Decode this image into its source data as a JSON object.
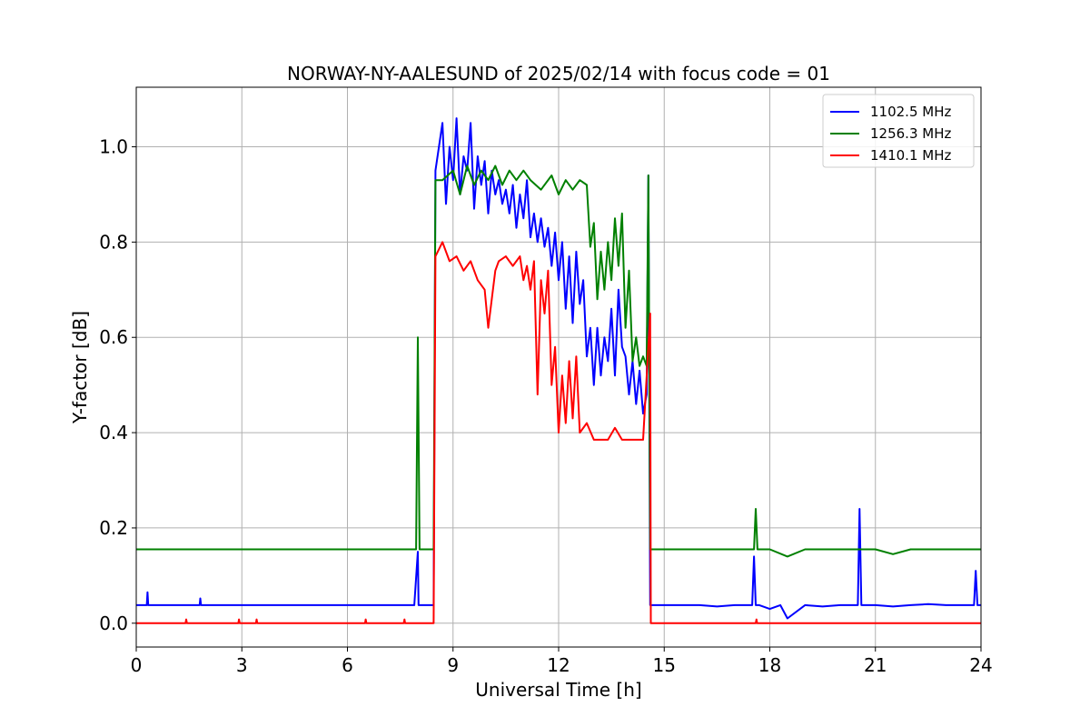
{
  "chart_data": {
    "type": "line",
    "title": "NORWAY-NY-AALESUND of 2025/02/14 with focus code = 01",
    "xlabel": "Universal Time [h]",
    "ylabel": "Y-factor [dB]",
    "xlim": [
      0,
      24
    ],
    "ylim": [
      -0.05,
      1.125
    ],
    "xticks": [
      0,
      3,
      6,
      9,
      12,
      15,
      18,
      21,
      24
    ],
    "yticks": [
      0.0,
      0.2,
      0.4,
      0.6,
      0.8,
      1.0
    ],
    "xtick_labels": [
      "0",
      "3",
      "6",
      "9",
      "12",
      "15",
      "18",
      "21",
      "24"
    ],
    "ytick_labels": [
      "0.0",
      "0.2",
      "0.4",
      "0.6",
      "0.8",
      "1.0"
    ],
    "grid": true,
    "legend_position": "top-right",
    "series": [
      {
        "name": "1102.5 MHz",
        "color": "#0000ff",
        "x": [
          0,
          0.3,
          0.32,
          0.34,
          1.8,
          1.82,
          1.84,
          3.5,
          5.2,
          6.8,
          7.9,
          8.0,
          8.02,
          8.04,
          8.45,
          8.5,
          8.7,
          8.8,
          8.9,
          9.0,
          9.1,
          9.2,
          9.3,
          9.4,
          9.5,
          9.6,
          9.7,
          9.8,
          9.9,
          10.0,
          10.1,
          10.2,
          10.3,
          10.4,
          10.5,
          10.6,
          10.7,
          10.8,
          10.9,
          11.0,
          11.1,
          11.2,
          11.3,
          11.4,
          11.5,
          11.6,
          11.7,
          11.8,
          11.9,
          12.0,
          12.1,
          12.2,
          12.3,
          12.4,
          12.5,
          12.6,
          12.7,
          12.8,
          12.9,
          13.0,
          13.1,
          13.2,
          13.3,
          13.4,
          13.5,
          13.6,
          13.7,
          13.8,
          13.9,
          14.0,
          14.1,
          14.2,
          14.3,
          14.4,
          14.5,
          14.55,
          14.6,
          14.62,
          14.65,
          15.0,
          15.5,
          16.0,
          16.5,
          17.0,
          17.5,
          17.55,
          17.6,
          17.65,
          17.7,
          18.0,
          18.3,
          18.5,
          19.0,
          19.5,
          20.0,
          20.5,
          20.55,
          20.6,
          20.65,
          20.7,
          21.0,
          21.5,
          22.0,
          22.5,
          23.0,
          23.5,
          23.8,
          23.85,
          23.9,
          24.0
        ],
        "y": [
          0.038,
          0.038,
          0.065,
          0.038,
          0.038,
          0.052,
          0.038,
          0.038,
          0.038,
          0.038,
          0.038,
          0.15,
          0.038,
          0.038,
          0.038,
          0.95,
          1.05,
          0.88,
          1.0,
          0.93,
          1.06,
          0.9,
          0.98,
          0.95,
          1.05,
          0.87,
          0.98,
          0.92,
          0.97,
          0.86,
          0.95,
          0.9,
          0.93,
          0.88,
          0.91,
          0.86,
          0.92,
          0.83,
          0.9,
          0.85,
          0.93,
          0.81,
          0.86,
          0.8,
          0.85,
          0.79,
          0.83,
          0.75,
          0.82,
          0.72,
          0.8,
          0.66,
          0.77,
          0.63,
          0.78,
          0.67,
          0.72,
          0.56,
          0.62,
          0.5,
          0.62,
          0.52,
          0.6,
          0.55,
          0.66,
          0.52,
          0.7,
          0.58,
          0.56,
          0.48,
          0.55,
          0.46,
          0.53,
          0.44,
          0.48,
          0.94,
          0.038,
          0.038,
          0.038,
          0.038,
          0.038,
          0.038,
          0.035,
          0.038,
          0.038,
          0.14,
          0.038,
          0.038,
          0.038,
          0.03,
          0.038,
          0.01,
          0.038,
          0.035,
          0.038,
          0.038,
          0.24,
          0.038,
          0.038,
          0.038,
          0.038,
          0.035,
          0.038,
          0.04,
          0.038,
          0.038,
          0.038,
          0.11,
          0.038,
          0.038
        ]
      },
      {
        "name": "1256.3 MHz",
        "color": "#008000",
        "x": [
          0,
          7.9,
          7.95,
          8.0,
          8.05,
          8.45,
          8.5,
          8.7,
          9.0,
          9.2,
          9.4,
          9.6,
          9.8,
          10.0,
          10.2,
          10.4,
          10.6,
          10.8,
          11.0,
          11.2,
          11.5,
          11.8,
          12.0,
          12.2,
          12.4,
          12.6,
          12.8,
          12.9,
          13.0,
          13.1,
          13.2,
          13.3,
          13.4,
          13.5,
          13.6,
          13.7,
          13.8,
          13.9,
          14.0,
          14.1,
          14.2,
          14.3,
          14.4,
          14.5,
          14.55,
          14.6,
          14.62,
          15.0,
          16.0,
          17.0,
          17.5,
          17.55,
          17.6,
          17.65,
          18.0,
          18.5,
          19.0,
          20.0,
          21.0,
          21.5,
          22.0,
          22.5,
          23.0,
          24.0
        ],
        "y": [
          0.155,
          0.155,
          0.155,
          0.6,
          0.155,
          0.155,
          0.93,
          0.93,
          0.95,
          0.9,
          0.96,
          0.92,
          0.95,
          0.93,
          0.96,
          0.92,
          0.95,
          0.93,
          0.95,
          0.93,
          0.91,
          0.94,
          0.9,
          0.93,
          0.91,
          0.93,
          0.92,
          0.79,
          0.84,
          0.68,
          0.78,
          0.7,
          0.8,
          0.72,
          0.85,
          0.75,
          0.86,
          0.62,
          0.74,
          0.55,
          0.6,
          0.54,
          0.56,
          0.54,
          0.94,
          0.155,
          0.155,
          0.155,
          0.155,
          0.155,
          0.155,
          0.155,
          0.24,
          0.155,
          0.155,
          0.14,
          0.155,
          0.155,
          0.155,
          0.145,
          0.155,
          0.155,
          0.155,
          0.155
        ]
      },
      {
        "name": "1410.1 MHz",
        "color": "#ff0000",
        "x": [
          0,
          1.4,
          1.42,
          1.44,
          2.9,
          2.92,
          2.94,
          3.4,
          3.42,
          3.44,
          6.5,
          6.52,
          6.54,
          7.6,
          7.62,
          7.64,
          8.45,
          8.5,
          8.7,
          8.9,
          9.1,
          9.3,
          9.5,
          9.7,
          9.9,
          10.0,
          10.1,
          10.2,
          10.3,
          10.5,
          10.7,
          10.9,
          11.0,
          11.1,
          11.2,
          11.3,
          11.4,
          11.5,
          11.6,
          11.7,
          11.8,
          11.9,
          12.0,
          12.1,
          12.2,
          12.3,
          12.4,
          12.5,
          12.6,
          12.8,
          13.0,
          13.2,
          13.4,
          13.6,
          13.8,
          14.0,
          14.2,
          14.4,
          14.6,
          14.62,
          14.65,
          15.0,
          17.0,
          17.6,
          17.62,
          17.64,
          20.0,
          24.0
        ],
        "y": [
          0.0,
          0.0,
          0.008,
          0.0,
          0.0,
          0.008,
          0.0,
          0.0,
          0.008,
          0.0,
          0.0,
          0.008,
          0.0,
          0.0,
          0.008,
          0.0,
          0.0,
          0.77,
          0.8,
          0.76,
          0.77,
          0.74,
          0.76,
          0.72,
          0.7,
          0.62,
          0.68,
          0.74,
          0.76,
          0.77,
          0.75,
          0.77,
          0.72,
          0.75,
          0.7,
          0.76,
          0.48,
          0.72,
          0.65,
          0.74,
          0.5,
          0.58,
          0.4,
          0.52,
          0.42,
          0.55,
          0.43,
          0.56,
          0.4,
          0.42,
          0.385,
          0.385,
          0.385,
          0.41,
          0.385,
          0.385,
          0.385,
          0.385,
          0.65,
          0.0,
          0.0,
          0.0,
          0.0,
          0.0,
          0.008,
          0.0,
          0.0,
          0.0
        ]
      }
    ]
  }
}
